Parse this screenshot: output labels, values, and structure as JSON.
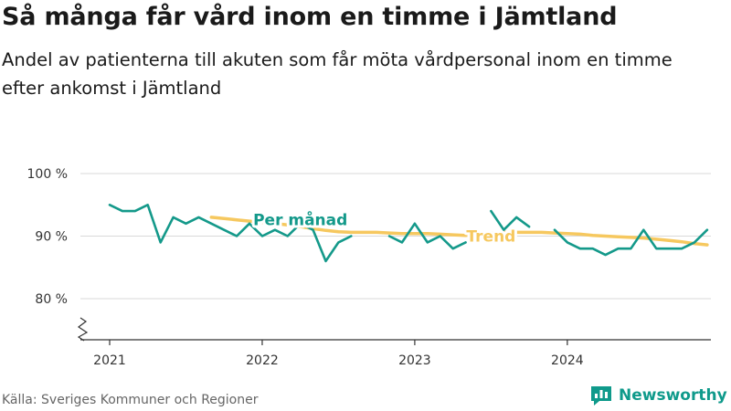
{
  "title": "Så många får vård inom en timme i Jämtland",
  "subtitle": "Andel av patienterna till akuten som får möta vårdpersonal inom en timme efter ankomst i Jämtland",
  "source": "Källa: Sveriges Kommuner och Regioner",
  "brand": "Newsworthy",
  "colors": {
    "monthly": "#14998a",
    "trend": "#f6c85f",
    "grid": "#d9d9d9",
    "axis": "#333333",
    "brand": "#0f9a8b"
  },
  "chart_data": {
    "type": "line",
    "title": "Så många får vård inom en timme i Jämtland",
    "ylim": [
      73,
      100
    ],
    "y_ticks": [
      {
        "value": 100,
        "label": "100 %"
      },
      {
        "value": 90,
        "label": "90 %"
      },
      {
        "value": 80,
        "label": "80 %"
      }
    ],
    "x_ticks": [
      {
        "value": "2021-01",
        "label": "2021"
      },
      {
        "value": "2022-01",
        "label": "2022"
      },
      {
        "value": "2023-01",
        "label": "2023"
      },
      {
        "value": "2024-01",
        "label": "2024"
      }
    ],
    "x_range": [
      "2020-12",
      "2024-12"
    ],
    "grid": true,
    "axis_break": true,
    "series": [
      {
        "name": "Per månad",
        "key": "monthly",
        "points": [
          [
            "2021-01",
            95
          ],
          [
            "2021-02",
            94
          ],
          [
            "2021-03",
            94
          ],
          [
            "2021-04",
            95
          ],
          [
            "2021-05",
            89
          ],
          [
            "2021-06",
            93
          ],
          [
            "2021-07",
            92
          ],
          [
            "2021-08",
            93
          ],
          [
            "2021-09",
            92
          ],
          [
            "2021-10",
            91
          ],
          [
            "2021-11",
            90
          ],
          [
            "2021-12",
            92
          ],
          [
            "2022-01",
            90
          ],
          [
            "2022-02",
            91
          ],
          [
            "2022-03",
            90
          ],
          [
            "2022-04",
            92
          ],
          [
            "2022-05",
            91
          ],
          [
            "2022-06",
            86
          ],
          [
            "2022-07",
            89
          ],
          [
            "2022-08",
            90
          ],
          [
            "2022-09",
            null
          ],
          [
            "2022-10",
            null
          ],
          [
            "2022-11",
            90
          ],
          [
            "2022-12",
            89
          ],
          [
            "2023-01",
            92
          ],
          [
            "2023-02",
            89
          ],
          [
            "2023-03",
            90
          ],
          [
            "2023-04",
            88
          ],
          [
            "2023-05",
            89
          ],
          [
            "2023-06",
            null
          ],
          [
            "2023-07",
            94
          ],
          [
            "2023-08",
            91
          ],
          [
            "2023-09",
            93
          ],
          [
            "2023-10",
            91.5
          ],
          [
            "2023-11",
            null
          ],
          [
            "2023-12",
            91
          ],
          [
            "2024-01",
            89
          ],
          [
            "2024-02",
            88
          ],
          [
            "2024-03",
            88
          ],
          [
            "2024-04",
            87
          ],
          [
            "2024-05",
            88
          ],
          [
            "2024-06",
            88
          ],
          [
            "2024-07",
            91
          ],
          [
            "2024-08",
            88
          ],
          [
            "2024-09",
            88
          ],
          [
            "2024-10",
            88
          ],
          [
            "2024-11",
            89
          ],
          [
            "2024-12",
            91
          ]
        ]
      },
      {
        "name": "Trend",
        "key": "trend",
        "points": [
          [
            "2021-09",
            93
          ],
          [
            "2021-10",
            92.8
          ],
          [
            "2021-11",
            92.6
          ],
          [
            "2021-12",
            92.4
          ],
          [
            "2022-01",
            92.2
          ],
          [
            "2022-02",
            92
          ],
          [
            "2022-03",
            91.8
          ],
          [
            "2022-04",
            91.5
          ],
          [
            "2022-05",
            91.2
          ],
          [
            "2022-06",
            90.9
          ],
          [
            "2022-07",
            90.7
          ],
          [
            "2022-08",
            90.6
          ],
          [
            "2022-09",
            90.6
          ],
          [
            "2022-10",
            90.6
          ],
          [
            "2022-11",
            90.5
          ],
          [
            "2022-12",
            90.4
          ],
          [
            "2023-01",
            90.4
          ],
          [
            "2023-02",
            90.4
          ],
          [
            "2023-03",
            90.3
          ],
          [
            "2023-04",
            90.2
          ],
          [
            "2023-05",
            90.1
          ],
          [
            "2023-06",
            90.3
          ],
          [
            "2023-07",
            90.5
          ],
          [
            "2023-08",
            90.6
          ],
          [
            "2023-09",
            90.6
          ],
          [
            "2023-10",
            90.6
          ],
          [
            "2023-11",
            90.6
          ],
          [
            "2023-12",
            90.5
          ],
          [
            "2024-01",
            90.4
          ],
          [
            "2024-02",
            90.3
          ],
          [
            "2024-03",
            90.1
          ],
          [
            "2024-04",
            90
          ],
          [
            "2024-05",
            89.9
          ],
          [
            "2024-06",
            89.8
          ],
          [
            "2024-07",
            89.7
          ],
          [
            "2024-08",
            89.5
          ],
          [
            "2024-09",
            89.3
          ],
          [
            "2024-10",
            89.1
          ],
          [
            "2024-11",
            88.8
          ],
          [
            "2024-12",
            88.6
          ]
        ]
      }
    ],
    "annotations": [
      {
        "text": "Per månad",
        "series": "monthly",
        "x": "2022-04",
        "y": 92.6
      },
      {
        "text": "Trend",
        "series": "trend",
        "x": "2023-07",
        "y": 90
      }
    ]
  }
}
